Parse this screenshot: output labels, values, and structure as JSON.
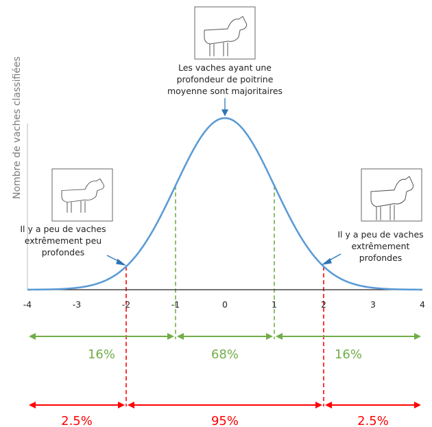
{
  "chart_data": {
    "type": "line",
    "title": "",
    "xlabel": "",
    "ylabel": "Nombre de vaches classifiées",
    "xlim": [
      -4,
      4
    ],
    "x_ticks": [
      -4,
      -3,
      -2,
      -1,
      0,
      1,
      2,
      3,
      4
    ],
    "x_tick_labels": [
      "-4",
      "-3",
      "-2",
      "-1",
      "0",
      "1",
      "2",
      "3",
      "4"
    ],
    "series": [
      {
        "distribution": "normal",
        "mean": 0,
        "sd": 1,
        "x_range": [
          -4,
          4
        ],
        "color": "#5b9bd5"
      }
    ],
    "reference_lines": [
      {
        "x": -2,
        "color": "#ff0000",
        "style": "dashed"
      },
      {
        "x": -1,
        "color": "#70ad47",
        "style": "dashed"
      },
      {
        "x": 1,
        "color": "#70ad47",
        "style": "dashed"
      },
      {
        "x": 2,
        "color": "#ff0000",
        "style": "dashed"
      }
    ],
    "intervals_green": [
      {
        "from": -4,
        "to": -1,
        "label": "16%"
      },
      {
        "from": -1,
        "to": 1,
        "label": "68%"
      },
      {
        "from": 1,
        "to": 4,
        "label": "16%"
      }
    ],
    "intervals_red": [
      {
        "from": -4,
        "to": -2,
        "label": "2.5%"
      },
      {
        "from": -2,
        "to": 2,
        "label": "95%"
      },
      {
        "from": 2,
        "to": 4,
        "label": "2.5%"
      }
    ],
    "annotations": {
      "top": "Les vaches ayant une profondeur de poitrine moyenne sont majoritaires",
      "left": "Il y a peu de vaches extrêmement peu profondes",
      "right": "Il y a peu de vaches extrêmement profondes"
    },
    "colors": {
      "curve": "#5b9bd5",
      "green": "#70ad47",
      "red": "#ff0000",
      "axis": "#222222"
    },
    "grid": false,
    "legend": "none"
  },
  "images": [
    {
      "icon": "cow-average-chest-drawing"
    },
    {
      "icon": "cow-shallow-chest-drawing"
    },
    {
      "icon": "cow-deep-chest-drawing"
    }
  ]
}
